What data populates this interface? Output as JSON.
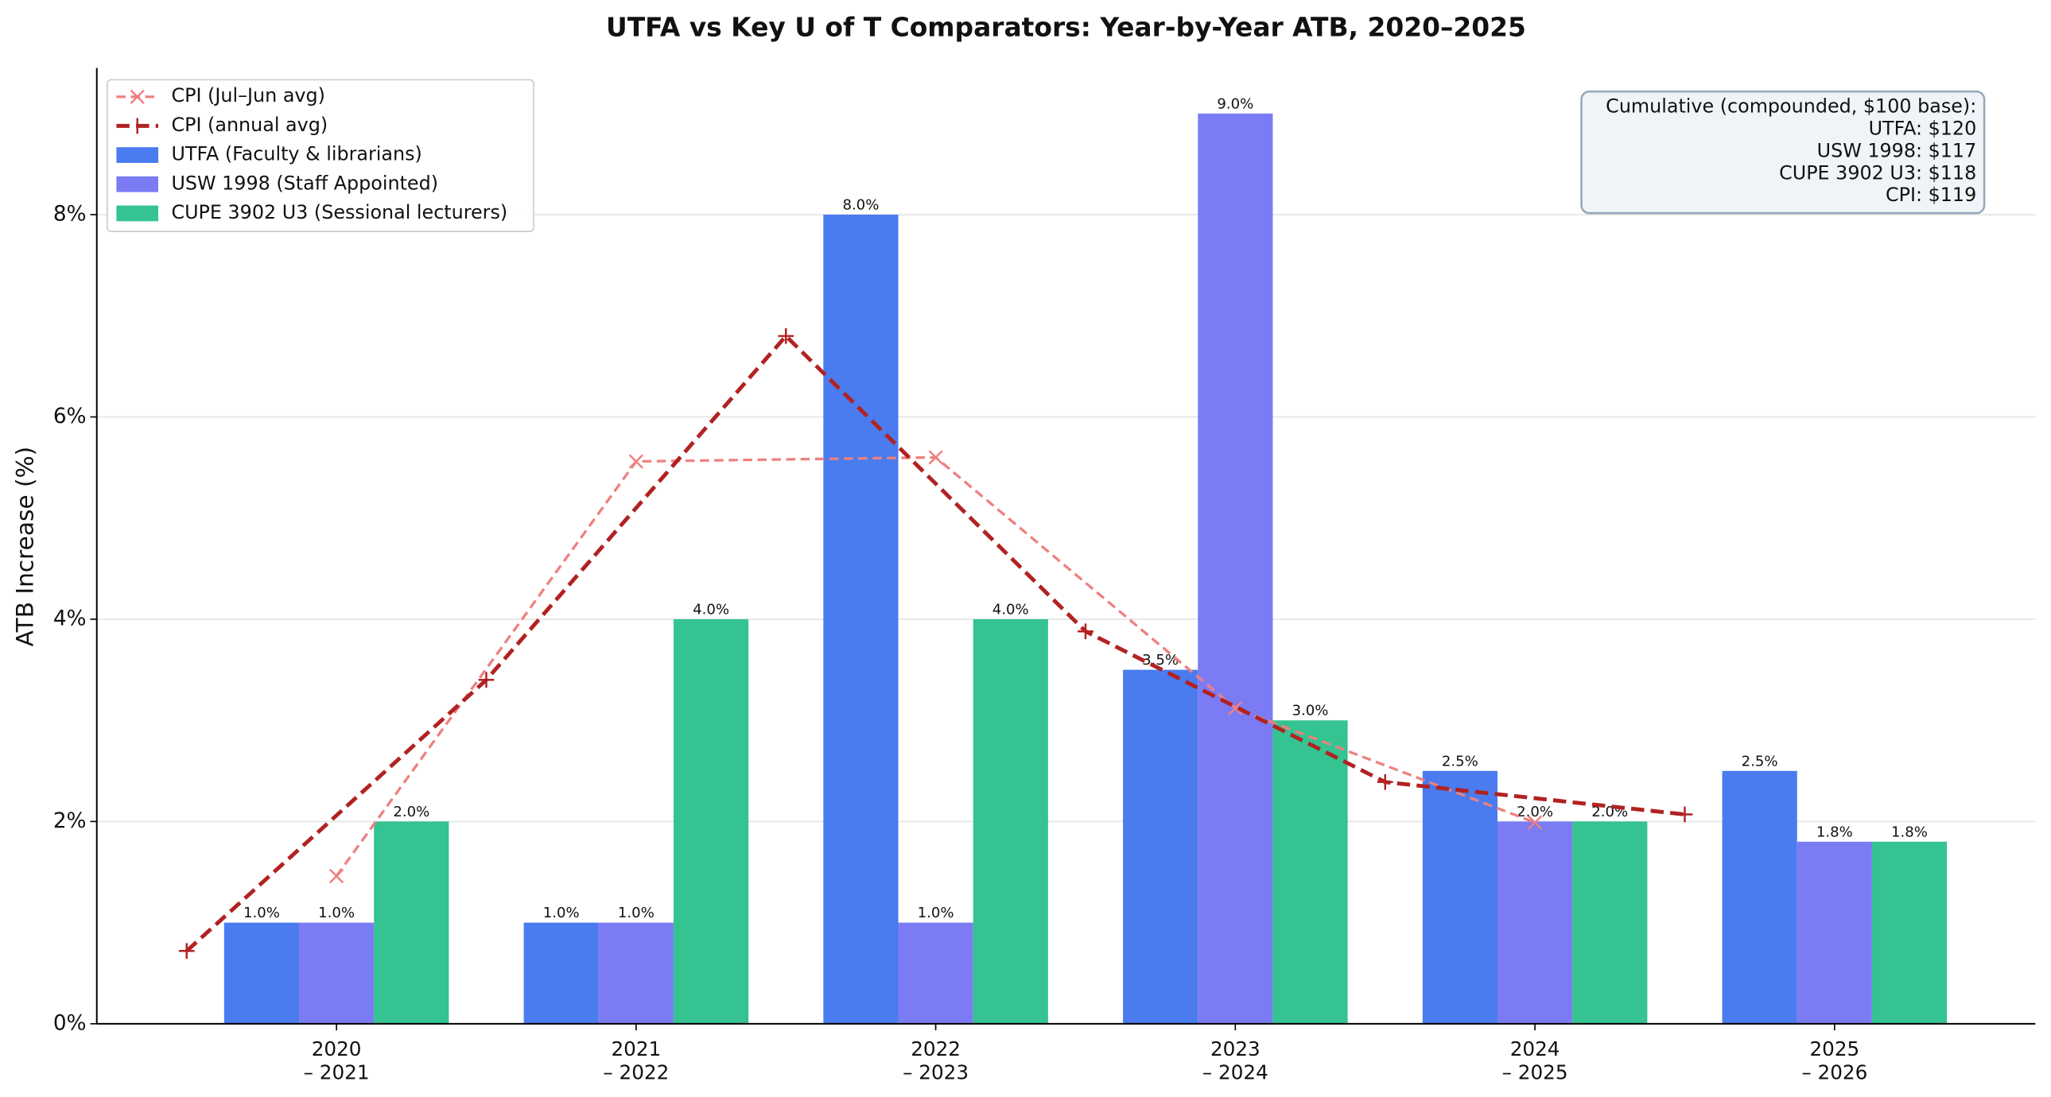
{
  "chart_data": {
    "type": "bar",
    "title": "UTFA vs Key U of T Comparators: Year-by-Year ATB, 2020–2025",
    "y_label": "ATB Increase (%)",
    "categories": [
      [
        "2020",
        "– 2021"
      ],
      [
        "2021",
        "– 2022"
      ],
      [
        "2022",
        "– 2023"
      ],
      [
        "2023",
        "– 2024"
      ],
      [
        "2024",
        "– 2025"
      ],
      [
        "2025",
        "– 2026"
      ]
    ],
    "ylim": [
      0,
      9.45
    ],
    "yticks": [
      {
        "value": 0,
        "label": "0%"
      },
      {
        "value": 2,
        "label": "2%"
      },
      {
        "value": 4,
        "label": "4%"
      },
      {
        "value": 6,
        "label": "6%"
      },
      {
        "value": 8,
        "label": "8%"
      }
    ],
    "grid": true,
    "legend": "upper left",
    "series": [
      {
        "name": "CPI (Jul–Jun avg)",
        "type": "line",
        "color": "#ee8080",
        "dash": true,
        "marker": "x",
        "x": [
          0,
          1,
          2,
          3,
          4
        ],
        "values": [
          1.46,
          5.56,
          5.6,
          3.12,
          1.99
        ]
      },
      {
        "name": "CPI (annual avg)",
        "type": "line",
        "color": "#b22222",
        "dash": true,
        "marker": "+",
        "x": [
          -0.5,
          0.5,
          1.5,
          2.5,
          3.5,
          4.5
        ],
        "values": [
          0.72,
          3.4,
          6.8,
          3.88,
          2.39,
          2.07
        ]
      },
      {
        "name": "UTFA (Faculty & librarians)",
        "type": "bar",
        "color": "#4a7bef",
        "values": [
          1.0,
          1.0,
          8.0,
          3.5,
          2.5,
          2.5
        ],
        "value_labels": [
          "1.0%",
          "1.0%",
          "8.0%",
          "3.5%",
          "2.5%",
          "2.5%"
        ]
      },
      {
        "name": "USW 1998 (Staff Appointed)",
        "type": "bar",
        "color": "#7b7cf3",
        "values": [
          1.0,
          1.0,
          1.0,
          9.0,
          2.0,
          1.8
        ],
        "value_labels": [
          "1.0%",
          "1.0%",
          "1.0%",
          "9.0%",
          "2.0%",
          "1.8%"
        ]
      },
      {
        "name": "CUPE 3902 U3 (Sessional lecturers)",
        "type": "bar",
        "color": "#34c391",
        "values": [
          2.0,
          4.0,
          4.0,
          3.0,
          2.0,
          1.8
        ],
        "value_labels": [
          "2.0%",
          "4.0%",
          "4.0%",
          "3.0%",
          "2.0%",
          "1.8%"
        ]
      }
    ],
    "annotation": [
      "Cumulative (compounded, $100 base):",
      "UTFA: $120",
      "USW 1998: $117",
      "CUPE 3902 U3: $118",
      "CPI: $119"
    ]
  }
}
